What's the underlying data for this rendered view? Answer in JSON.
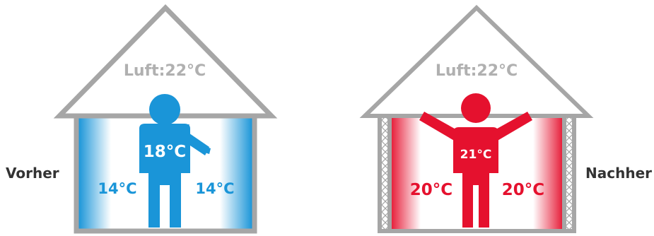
{
  "before": {
    "side_label": "Vorher",
    "air_label": "Luft:22°C",
    "person_temp": "18°C",
    "wall_left_temp": "14°C",
    "wall_right_temp": "14°C"
  },
  "after": {
    "side_label": "Nachher",
    "air_label": "Luft:22°C",
    "person_temp": "21°C",
    "wall_left_temp": "20°C",
    "wall_right_temp": "20°C"
  },
  "colors": {
    "house_outline": "#a6a6a6",
    "air_text": "#b0b0b0",
    "cold": "#1a95d8",
    "warm": "#e5112e",
    "label_text": "#333333"
  }
}
